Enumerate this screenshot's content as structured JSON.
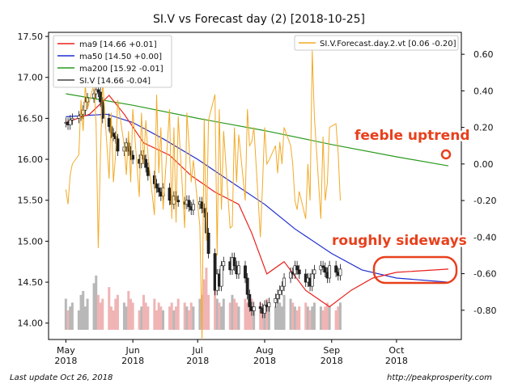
{
  "chart_data": {
    "type": "line",
    "title": "SI.V vs Forecast day (2)  [2018-10-25]",
    "x_ticks": [
      {
        "label": "May\n2018",
        "date": "2018-05-01"
      },
      {
        "label": "Jun\n2018",
        "date": "2018-06-01"
      },
      {
        "label": "Jul\n2018",
        "date": "2018-07-01"
      },
      {
        "label": "Aug\n2018",
        "date": "2018-08-01"
      },
      {
        "label": "Sep\n2018",
        "date": "2018-09-01"
      },
      {
        "label": "Oct\n2018",
        "date": "2018-10-01"
      }
    ],
    "x_range": [
      "2018-04-23",
      "2018-10-31"
    ],
    "left_axis": {
      "ylim": [
        13.8,
        17.55
      ],
      "ticks": [
        "14.00",
        "14.50",
        "15.00",
        "15.50",
        "16.00",
        "16.50",
        "17.00",
        "17.50"
      ]
    },
    "right_axis": {
      "ylim": [
        -0.96,
        0.72
      ],
      "ticks": [
        "0.60",
        "0.40",
        "0.20",
        "0.00",
        "-0.20",
        "-0.40",
        "-0.60",
        "-0.80"
      ]
    },
    "grid": false,
    "legend_left": [
      {
        "label": "ma9 [14.66 +0.01]",
        "color": "#e8201c"
      },
      {
        "label": "ma50 [14.50 +0.00]",
        "color": "#1f2fd0"
      },
      {
        "label": "ma200 [15.92 -0.01]",
        "color": "#2a9a1e"
      },
      {
        "label": "SI.V [14.66 -0.04]",
        "color": "#444444"
      }
    ],
    "legend_right": {
      "label": "SI.V.Forecast.day.2.vt [0.06 -0.20]",
      "color": "#f2aa28"
    },
    "ma200": {
      "dates": [
        "2018-05-01",
        "2018-06-01",
        "2018-07-01",
        "2018-08-01",
        "2018-09-01",
        "2018-10-01",
        "2018-10-25"
      ],
      "values": [
        16.8,
        16.66,
        16.5,
        16.35,
        16.18,
        16.03,
        15.92
      ]
    },
    "ma50": {
      "dates": [
        "2018-05-01",
        "2018-05-20",
        "2018-06-01",
        "2018-06-15",
        "2018-07-01",
        "2018-07-15",
        "2018-08-01",
        "2018-08-15",
        "2018-09-01",
        "2018-09-15",
        "2018-10-01",
        "2018-10-25"
      ],
      "values": [
        16.52,
        16.55,
        16.45,
        16.25,
        16.0,
        15.75,
        15.45,
        15.15,
        14.85,
        14.65,
        14.55,
        14.5
      ]
    },
    "ma9": {
      "dates": [
        "2018-05-01",
        "2018-05-12",
        "2018-05-21",
        "2018-05-28",
        "2018-06-06",
        "2018-06-18",
        "2018-06-28",
        "2018-07-09",
        "2018-07-20",
        "2018-07-26",
        "2018-08-02",
        "2018-08-10",
        "2018-08-20",
        "2018-08-31",
        "2018-09-10",
        "2018-09-20",
        "2018-10-01",
        "2018-10-25"
      ],
      "values": [
        16.45,
        16.55,
        16.78,
        16.55,
        16.2,
        16.05,
        15.8,
        15.6,
        15.45,
        15.1,
        14.6,
        14.75,
        14.4,
        14.2,
        14.4,
        14.55,
        14.62,
        14.66
      ]
    },
    "candles": {
      "start": "2018-05-01",
      "close": [
        16.45,
        16.42,
        16.48,
        16.5,
        16.53,
        16.55,
        16.6,
        16.7,
        16.75,
        16.8,
        16.85,
        16.82,
        16.7,
        16.5,
        16.4,
        16.32,
        16.28,
        16.25,
        16.1,
        16.15,
        16.2,
        16.1,
        16.05,
        16.0,
        15.95,
        16.05,
        16.0,
        15.9,
        15.8,
        15.7,
        15.65,
        15.6,
        15.55,
        15.65,
        15.5,
        15.45,
        15.55,
        15.5,
        15.48,
        15.45,
        15.5,
        15.42,
        15.38,
        15.45,
        15.48,
        15.4,
        15.35,
        15.1,
        14.85,
        14.4,
        14.6,
        14.45,
        14.7,
        14.75,
        14.65,
        14.8,
        14.7,
        14.6,
        14.7,
        14.55,
        14.35,
        14.2,
        14.15,
        14.2,
        14.18,
        14.12,
        14.22,
        14.2,
        14.25,
        14.3,
        14.35,
        14.4,
        14.45,
        14.55,
        14.62,
        14.6,
        14.7,
        14.65,
        14.6,
        14.5,
        14.55,
        14.45,
        14.6,
        14.65,
        14.7,
        14.68,
        14.62,
        14.55,
        14.7,
        14.62,
        14.58,
        14.66
      ]
    },
    "volume": {
      "start": "2018-05-01",
      "values": [
        0.8,
        0.5,
        0.6,
        0.7,
        0.5,
        0.9,
        1.0,
        0.6,
        0.8,
        1.2,
        1.4,
        0.9,
        0.7,
        0.8,
        1.1,
        0.6,
        0.5,
        0.8,
        0.9,
        0.7,
        0.6,
        1.0,
        0.8,
        0.7,
        0.5,
        0.6,
        0.9,
        0.7,
        0.6,
        0.8,
        0.5,
        0.7,
        0.6,
        0.5,
        0.6,
        0.7,
        0.5,
        0.6,
        0.8,
        0.7,
        0.6,
        0.5,
        0.7,
        0.6,
        0.8,
        0.9,
        1.3,
        1.6,
        0.9,
        1.1,
        0.8,
        0.7,
        0.6,
        0.8,
        0.7,
        0.9,
        0.8,
        0.7,
        0.6,
        0.8,
        0.7,
        0.9,
        0.8,
        0.6,
        0.7,
        0.5,
        0.6,
        0.8,
        0.7,
        0.6,
        0.8,
        0.7,
        0.6,
        0.9,
        0.8,
        0.7,
        0.6,
        0.5,
        0.6,
        0.7,
        0.6,
        0.5,
        0.6,
        0.7,
        0.6,
        0.5,
        0.6,
        0.7,
        0.6,
        0.5,
        0.6,
        0.7
      ]
    },
    "forecast": {
      "start": "2018-05-01",
      "values": [
        -0.14,
        -0.22,
        -0.06,
        0.0,
        0.05,
        0.35,
        0.18,
        0.43,
        0.3,
        0.44,
        0.22,
        -0.46,
        0.05,
        0.46,
        -0.08,
        0.28,
        -0.1,
        0.05,
        0.35,
        0.1,
        -0.06,
        0.18,
        -0.1,
        0.3,
        -0.18,
        0.28,
        0.0,
        0.24,
        0.05,
        -0.28,
        0.38,
        -0.05,
        0.2,
        -0.25,
        0.3,
        -0.3,
        0.2,
        -0.32,
        0.26,
        -0.35,
        0.28,
        0.1,
        -0.1,
        0.02,
        -0.34,
        -0.96,
        0.25,
        -0.42,
        0.24,
        0.38,
        -0.5,
        0.3,
        -0.25,
        0.18,
        -0.35,
        -0.34,
        0.2,
        -0.1,
        0.16,
        -0.2,
        0.3,
        0.1,
        0.12,
        0.2,
        -0.4,
        -0.12,
        0.2,
        0.0,
        0.02,
        0.1,
        -0.05,
        0.12,
        0.0,
        0.2,
        0.1,
        0.0,
        -0.2,
        -0.25,
        -0.15,
        -0.3,
        0.0,
        -0.2,
        0.62,
        0.26,
        -0.3,
        0.15,
        -0.2,
        -0.1,
        0.2,
        0.22,
        0.06,
        -0.2
      ]
    }
  },
  "annotations": {
    "uptrend": "feeble uptrend",
    "sideways": "roughly sideways"
  },
  "footer": {
    "left": "Last update Oct 26, 2018",
    "right": "http://peakprosperity.com"
  }
}
